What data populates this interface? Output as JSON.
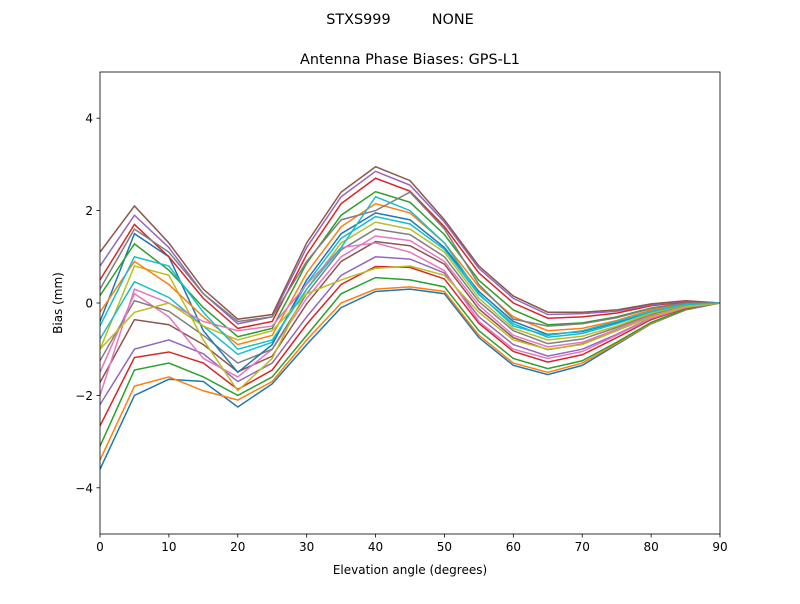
{
  "chart_data": {
    "type": "line",
    "suptitle": "STXS999         NONE",
    "title": "Antenna Phase Biases: GPS-L1",
    "xlabel": "Elevation angle (degrees)",
    "ylabel": "Bias (mm)",
    "xlim": [
      0,
      90
    ],
    "ylim": [
      -5,
      5
    ],
    "xticks": [
      0,
      10,
      20,
      30,
      40,
      50,
      60,
      70,
      80,
      90
    ],
    "yticks": [
      -4,
      -2,
      0,
      2,
      4
    ],
    "ytick_labels": [
      "−4",
      "−2",
      "0",
      "2",
      "4"
    ],
    "grid": false,
    "legend": "none",
    "colors": [
      "#1f77b4",
      "#ff7f0e",
      "#2ca02c",
      "#d62728",
      "#9467bd",
      "#8c564b",
      "#e377c2",
      "#7f7f7f",
      "#bcbd22",
      "#17becf"
    ],
    "x": [
      0,
      5,
      10,
      15,
      20,
      25,
      30,
      35,
      40,
      45,
      50,
      55,
      60,
      65,
      70,
      75,
      80,
      85,
      90
    ],
    "series": [
      {
        "values": [
          -3.6,
          -2.0,
          -1.65,
          -1.7,
          -2.25,
          -1.75,
          -0.9,
          -0.1,
          0.25,
          0.3,
          0.2,
          -0.75,
          -1.35,
          -1.55,
          -1.35,
          -0.9,
          -0.45,
          -0.15,
          0
        ]
      },
      {
        "values": [
          -3.4,
          -1.8,
          -1.6,
          -1.9,
          -2.1,
          -1.7,
          -0.8,
          0.0,
          0.3,
          0.35,
          0.25,
          -0.7,
          -1.3,
          -1.5,
          -1.3,
          -0.88,
          -0.44,
          -0.14,
          0
        ]
      },
      {
        "values": [
          -3.1,
          -1.45,
          -1.3,
          -1.6,
          -2.0,
          -1.6,
          -0.7,
          0.2,
          0.55,
          0.5,
          0.35,
          -0.6,
          -1.2,
          -1.42,
          -1.25,
          -0.85,
          -0.42,
          -0.13,
          0
        ]
      },
      {
        "values": [
          -2.66,
          -1.18,
          -1.06,
          -1.3,
          -1.87,
          -1.45,
          -0.46,
          0.4,
          0.79,
          0.77,
          0.52,
          -0.44,
          -1.05,
          -1.28,
          -1.12,
          -0.75,
          -0.36,
          -0.11,
          0
        ]
      },
      {
        "values": [
          -2.2,
          -1.0,
          -0.8,
          -1.1,
          -1.7,
          -1.3,
          -0.3,
          0.6,
          1.0,
          0.95,
          0.65,
          -0.3,
          -0.9,
          -1.15,
          -1.0,
          -0.68,
          -0.32,
          -0.09,
          0
        ]
      },
      {
        "values": [
          -1.72,
          -0.36,
          -0.47,
          -0.9,
          -1.49,
          -1.15,
          -0.02,
          0.9,
          1.33,
          1.24,
          0.84,
          -0.13,
          -0.75,
          -1.01,
          -0.89,
          -0.6,
          -0.28,
          -0.07,
          0
        ]
      },
      {
        "values": [
          -1.5,
          0.2,
          -0.3,
          -1.2,
          -1.6,
          -1.0,
          0.1,
          1.0,
          1.45,
          1.35,
          0.9,
          -0.05,
          -0.7,
          -0.95,
          -0.85,
          -0.57,
          -0.26,
          -0.06,
          0
        ]
      },
      {
        "values": [
          -1.25,
          0.05,
          -0.18,
          -0.7,
          -1.3,
          -1.0,
          0.2,
          1.15,
          1.6,
          1.48,
          1.0,
          0.03,
          -0.6,
          -0.88,
          -0.78,
          -0.53,
          -0.24,
          -0.05,
          0
        ]
      },
      {
        "values": [
          -1.0,
          0.8,
          0.6,
          -0.8,
          -1.9,
          -1.2,
          0.3,
          1.3,
          1.75,
          1.6,
          1.1,
          0.1,
          -0.55,
          -0.8,
          -0.72,
          -0.5,
          -0.22,
          -0.04,
          0
        ]
      },
      {
        "values": [
          -0.78,
          0.46,
          0.12,
          -0.5,
          -1.11,
          -0.85,
          0.42,
          1.4,
          1.87,
          1.71,
          1.16,
          0.18,
          -0.45,
          -0.74,
          -0.66,
          -0.45,
          -0.19,
          -0.03,
          0
        ]
      },
      {
        "values": [
          -0.4,
          1.5,
          1.0,
          -0.6,
          -1.5,
          -0.9,
          0.5,
          1.5,
          1.95,
          1.8,
          1.2,
          0.25,
          -0.4,
          -0.68,
          -0.62,
          -0.42,
          -0.17,
          -0.02,
          0
        ]
      },
      {
        "values": [
          -0.2,
          0.9,
          0.4,
          -0.3,
          -0.9,
          -0.7,
          0.65,
          1.65,
          2.15,
          1.95,
          1.3,
          0.35,
          -0.3,
          -0.6,
          -0.55,
          -0.38,
          -0.15,
          -0.01,
          0
        ]
      },
      {
        "values": [
          0.16,
          1.28,
          0.71,
          -0.1,
          -0.73,
          -0.55,
          0.86,
          1.9,
          2.41,
          2.18,
          1.48,
          0.49,
          -0.15,
          -0.47,
          -0.43,
          -0.3,
          -0.11,
          0.01,
          0
        ]
      },
      {
        "values": [
          0.5,
          1.7,
          1.0,
          0.1,
          -0.55,
          -0.4,
          1.05,
          2.15,
          2.7,
          2.42,
          1.65,
          0.65,
          0.0,
          -0.33,
          -0.3,
          -0.22,
          -0.06,
          0.03,
          0
        ]
      },
      {
        "values": [
          0.8,
          1.9,
          1.2,
          0.2,
          -0.45,
          -0.3,
          1.2,
          2.3,
          2.85,
          2.55,
          1.75,
          0.75,
          0.1,
          -0.25,
          -0.23,
          -0.18,
          -0.04,
          0.04,
          0
        ]
      },
      {
        "values": [
          1.1,
          2.1,
          1.3,
          0.3,
          -0.35,
          -0.25,
          1.3,
          2.4,
          2.95,
          2.65,
          1.8,
          0.8,
          0.15,
          -0.2,
          -0.2,
          -0.15,
          -0.02,
          0.05,
          0
        ]
      },
      {
        "values": [
          -2.0,
          0.3,
          0.0,
          -0.4,
          -0.6,
          -0.5,
          0.4,
          1.2,
          1.3,
          1.1,
          0.7,
          -0.4,
          -1.0,
          -1.2,
          -1.05,
          -0.7,
          -0.33,
          -0.1,
          0
        ]
      },
      {
        "values": [
          0.3,
          1.6,
          1.1,
          0.2,
          -0.4,
          -0.3,
          0.9,
          1.8,
          2.0,
          2.4,
          1.6,
          0.4,
          -0.35,
          -0.5,
          -0.45,
          -0.32,
          -0.12,
          0.0,
          0
        ]
      },
      {
        "values": [
          -1.0,
          -0.2,
          0.0,
          -0.5,
          -0.8,
          -0.6,
          0.2,
          0.5,
          0.75,
          0.8,
          0.6,
          -0.2,
          -0.8,
          -1.0,
          -0.9,
          -0.6,
          -0.3,
          -0.08,
          0
        ]
      },
      {
        "values": [
          -0.5,
          1.0,
          0.8,
          -0.2,
          -1.0,
          -0.8,
          0.3,
          1.2,
          2.3,
          2.0,
          1.3,
          0.2,
          -0.5,
          -0.7,
          -0.6,
          -0.4,
          -0.18,
          -0.03,
          0
        ]
      }
    ]
  }
}
